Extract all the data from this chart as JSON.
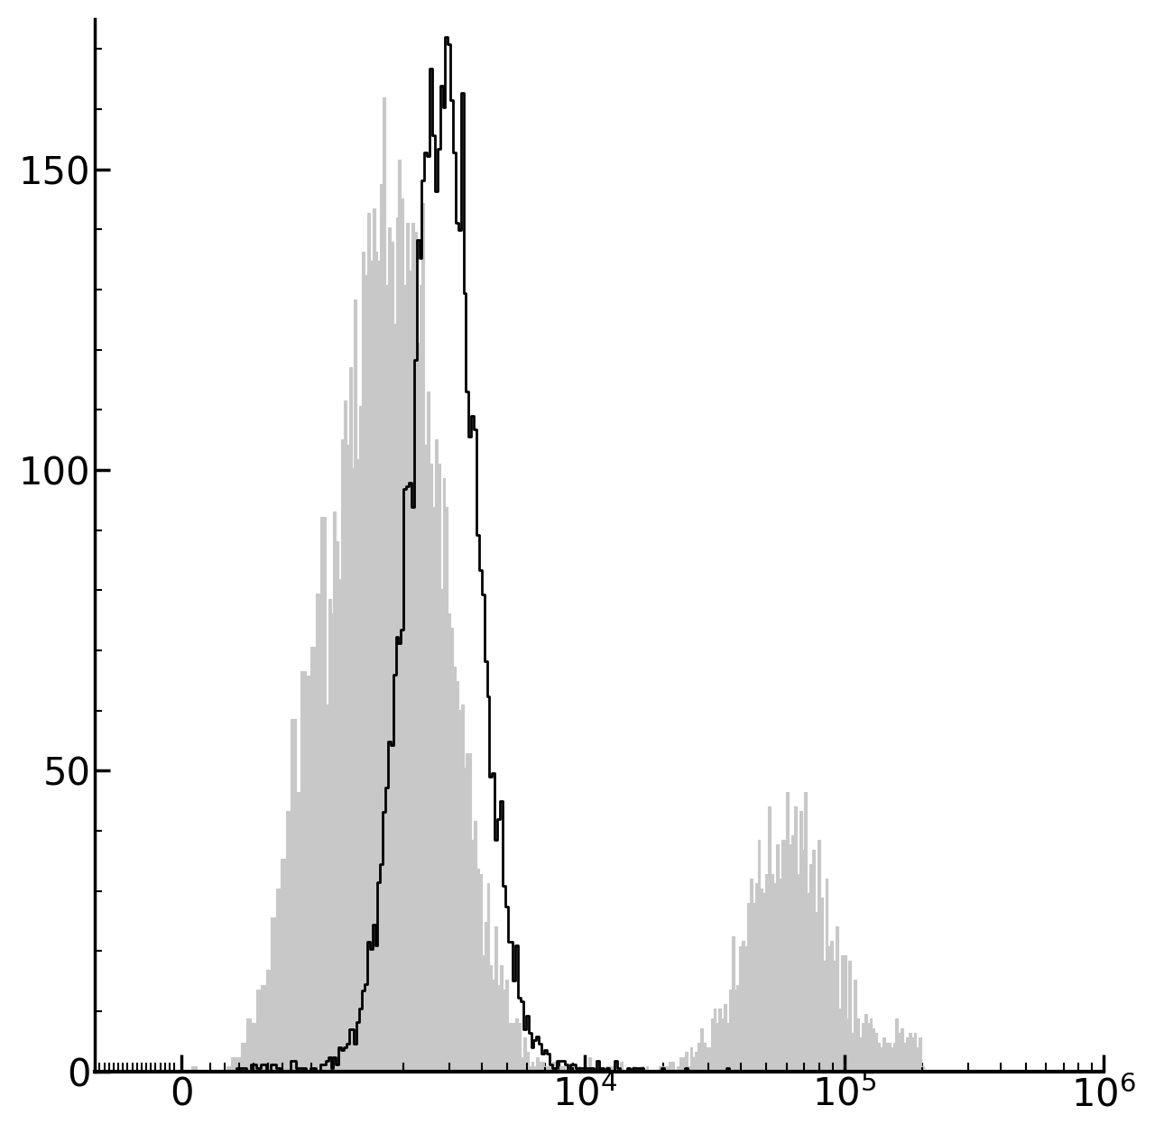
{
  "background_color": "#ffffff",
  "ylim": [
    0,
    175
  ],
  "yticks": [
    0,
    50,
    100,
    150
  ],
  "gray_color": "#c8c8c8",
  "black_color": "#000000",
  "linewidth_black": 2.0,
  "tick_label_fontsize": 30,
  "fig_width": 12.8,
  "fig_height": 12.56,
  "dpi": 100,
  "linthresh": 1000,
  "linscale": 0.5
}
